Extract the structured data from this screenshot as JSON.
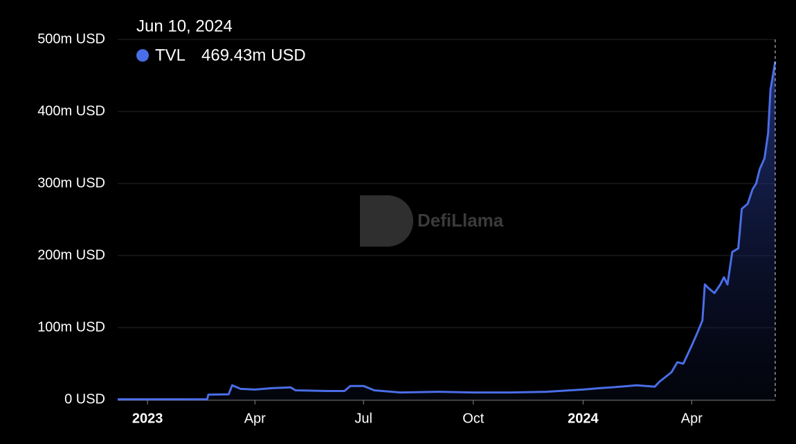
{
  "chart_data": {
    "type": "line",
    "watermark": "DefiLlama",
    "tooltip": {
      "date": "Jun 10, 2024",
      "value_label": "469.43m USD"
    },
    "x": [
      "2022-12-07",
      "2023-01-01",
      "2023-02-01",
      "2023-02-20",
      "2023-02-21",
      "2023-03-10",
      "2023-03-13",
      "2023-03-20",
      "2023-04-01",
      "2023-04-15",
      "2023-05-01",
      "2023-05-05",
      "2023-06-01",
      "2023-06-15",
      "2023-06-20",
      "2023-07-01",
      "2023-07-10",
      "2023-08-01",
      "2023-09-01",
      "2023-10-01",
      "2023-11-01",
      "2023-12-01",
      "2024-01-01",
      "2024-01-15",
      "2024-02-01",
      "2024-02-15",
      "2024-03-01",
      "2024-03-05",
      "2024-03-15",
      "2024-03-20",
      "2024-03-25",
      "2024-04-01",
      "2024-04-05",
      "2024-04-10",
      "2024-04-12",
      "2024-04-15",
      "2024-04-20",
      "2024-04-25",
      "2024-04-28",
      "2024-05-01",
      "2024-05-05",
      "2024-05-10",
      "2024-05-13",
      "2024-05-18",
      "2024-05-22",
      "2024-05-25",
      "2024-05-28",
      "2024-06-01",
      "2024-06-04",
      "2024-06-06",
      "2024-06-08",
      "2024-06-10"
    ],
    "series": [
      {
        "name": "TVL",
        "color": "#4a6ee8",
        "values": [
          0.5,
          0.5,
          0.5,
          0.6,
          7,
          7.5,
          20,
          15,
          14,
          16,
          17,
          13,
          12,
          12,
          19,
          19,
          13,
          10,
          11,
          10,
          10,
          11,
          14,
          16,
          18,
          20,
          18,
          25,
          38,
          52,
          50,
          75,
          90,
          110,
          160,
          155,
          148,
          160,
          170,
          160,
          205,
          210,
          265,
          272,
          292,
          300,
          320,
          335,
          370,
          430,
          450,
          469.43
        ]
      }
    ],
    "xlim": [
      "2022-12-07",
      "2024-06-10"
    ],
    "xticks": [
      {
        "value": "2023-01-01",
        "label": "2023"
      },
      {
        "value": "2023-04-01",
        "label": "Apr"
      },
      {
        "value": "2023-07-01",
        "label": "Jul"
      },
      {
        "value": "2023-10-01",
        "label": "Oct"
      },
      {
        "value": "2024-01-01",
        "label": "2024"
      },
      {
        "value": "2024-04-01",
        "label": "Apr"
      }
    ],
    "ylim": [
      0,
      500
    ],
    "yticks": [
      {
        "value": 0,
        "label": "0 USD"
      },
      {
        "value": 100,
        "label": "100m USD"
      },
      {
        "value": 200,
        "label": "200m USD"
      },
      {
        "value": 300,
        "label": "300m USD"
      },
      {
        "value": 400,
        "label": "400m USD"
      },
      {
        "value": 500,
        "label": "500m USD"
      }
    ],
    "grid": true
  }
}
